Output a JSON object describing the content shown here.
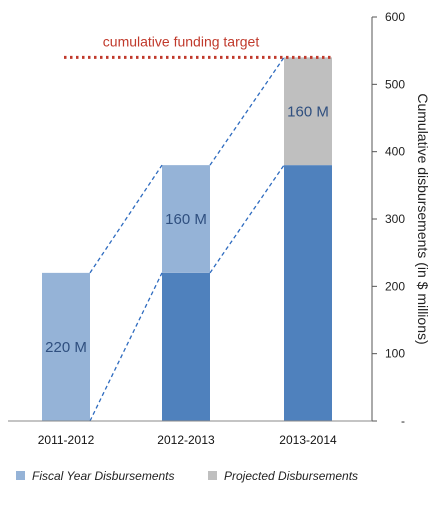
{
  "chart_data": {
    "type": "bar",
    "stacked": true,
    "categories": [
      "2011-2012",
      "2012-2013",
      "2013-2014"
    ],
    "series": [
      {
        "name": "Fiscal Year Disbursements",
        "values": [
          220,
          380,
          380
        ],
        "color": "#4f81bd",
        "color_light": "#95b3d7"
      },
      {
        "name": "Projected Disbursements",
        "values": [
          0,
          0,
          160
        ],
        "color": "#bfbfbf"
      }
    ],
    "segments": [
      {
        "category": "2011-2012",
        "from": 0,
        "to": 220,
        "fill": "#95b3d7",
        "label": "220 M"
      },
      {
        "category": "2012-2013",
        "from": 0,
        "to": 220,
        "fill": "#4f81bd",
        "label": ""
      },
      {
        "category": "2012-2013",
        "from": 220,
        "to": 380,
        "fill": "#95b3d7",
        "label": "160 M"
      },
      {
        "category": "2013-2014",
        "from": 0,
        "to": 380,
        "fill": "#4f81bd",
        "label": ""
      },
      {
        "category": "2013-2014",
        "from": 380,
        "to": 540,
        "fill": "#bfbfbf",
        "label": "160 M"
      }
    ],
    "connectors": [
      {
        "from_category": "2011-2012",
        "from_value": 220,
        "to_category": "2012-2013",
        "to_value": 380
      },
      {
        "from_category": "2011-2012",
        "from_value": 0,
        "to_category": "2012-2013",
        "to_value": 220
      },
      {
        "from_category": "2012-2013",
        "from_value": 380,
        "to_category": "2013-2014",
        "to_value": 540
      },
      {
        "from_category": "2012-2013",
        "from_value": 220,
        "to_category": "2013-2014",
        "to_value": 380
      }
    ],
    "target": {
      "label": "cumulative funding target",
      "value": 540,
      "color": "#c0392b"
    },
    "ylabel": "Cumulative disbursements (in $ millions)",
    "ylim": [
      0,
      600
    ],
    "yticks": [
      0,
      100,
      200,
      300,
      400,
      500,
      600
    ],
    "ytick_labels": [
      "-",
      "100",
      "200",
      "300",
      "400",
      "500",
      "600"
    ],
    "axis_side": "right",
    "grid": false,
    "legend_placement": "bottom",
    "connector_color": "#2e6bbf"
  }
}
